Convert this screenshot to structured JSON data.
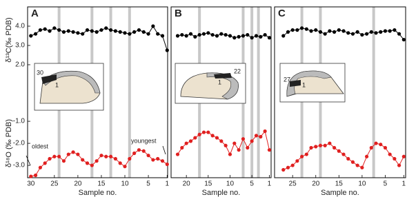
{
  "chart_data": [
    {
      "type": "line",
      "label": "A",
      "x_label": "Sample no.",
      "y_label": "δ¹³C(‰ PDB)",
      "y2_label": "δ¹⁸O (‰ PDB)",
      "ylim": [
        -3.86,
        5.0
      ],
      "y2lim": [
        -3.56,
        4.19
      ],
      "yticks": [
        {
          "value": 2,
          "label": "2.0"
        },
        {
          "value": 3,
          "label": "3.0"
        },
        {
          "value": 4,
          "label": "4.0"
        }
      ],
      "y2ticks": [
        {
          "value": -1,
          "label": "-1.0"
        },
        {
          "value": -2,
          "label": "-2.0"
        },
        {
          "value": -3,
          "label": "-3.0"
        }
      ],
      "xlim": [
        30.7,
        0.9
      ],
      "xticks": [
        30,
        25,
        20,
        15,
        10,
        5,
        1
      ],
      "bands": [
        24,
        17,
        13,
        9
      ],
      "annotations": [
        "oldest",
        "youngest"
      ],
      "inset_labels": [
        "30",
        "1"
      ],
      "x": [
        30,
        29,
        28,
        27,
        26,
        25,
        24,
        23,
        22,
        21,
        20,
        19,
        18,
        17,
        16,
        15,
        14,
        13,
        12,
        11,
        10,
        9,
        8,
        7,
        6,
        5,
        4,
        3,
        2,
        1
      ],
      "series": [
        {
          "color": "#000000",
          "values": [
            3.5,
            3.6,
            3.8,
            3.85,
            3.75,
            3.9,
            3.8,
            3.7,
            3.75,
            3.7,
            3.65,
            3.6,
            3.8,
            3.75,
            3.7,
            3.8,
            3.9,
            3.8,
            3.75,
            3.7,
            3.65,
            3.6,
            3.7,
            3.8,
            3.7,
            3.6,
            4.0,
            3.6,
            3.5,
            2.75
          ]
        },
        {
          "color": "#e02020",
          "axis": "y2",
          "values": [
            -3.5,
            -3.45,
            -3.1,
            -2.9,
            -2.7,
            -2.6,
            -2.6,
            -2.8,
            -2.5,
            -2.4,
            -2.5,
            -2.75,
            -2.9,
            -3.0,
            -2.8,
            -2.55,
            -2.6,
            -2.6,
            -2.7,
            -2.9,
            -3.05,
            -2.7,
            -2.45,
            -2.3,
            -2.35,
            -2.55,
            -2.75,
            -2.7,
            -2.8,
            -2.95
          ]
        }
      ]
    },
    {
      "type": "line",
      "label": "B",
      "x_label": "Sample no.",
      "xlim": [
        23.5,
        0.6
      ],
      "xticks": [
        20,
        15,
        10,
        5,
        1
      ],
      "bands": [
        17,
        7,
        5,
        3.5
      ],
      "inset_labels": [
        "22",
        "1"
      ],
      "x": [
        22,
        21,
        20,
        19,
        18,
        17,
        16,
        15,
        14,
        13,
        12,
        11,
        10,
        9,
        8,
        7,
        6,
        5,
        4,
        3,
        2,
        1
      ],
      "series": [
        {
          "color": "#000000",
          "values": [
            3.5,
            3.55,
            3.5,
            3.6,
            3.45,
            3.55,
            3.6,
            3.65,
            3.55,
            3.5,
            3.6,
            3.55,
            3.5,
            3.4,
            3.45,
            3.5,
            3.55,
            3.4,
            3.5,
            3.45,
            3.55,
            3.4
          ]
        },
        {
          "color": "#e02020",
          "axis": "y2",
          "values": [
            -2.5,
            -2.2,
            -2.0,
            -1.9,
            -1.75,
            -1.6,
            -1.5,
            -1.5,
            -1.65,
            -1.75,
            -1.9,
            -2.1,
            -2.5,
            -2.0,
            -2.3,
            -1.8,
            -2.2,
            -1.9,
            -1.65,
            -1.7,
            -1.45,
            -2.3
          ]
        }
      ]
    },
    {
      "type": "line",
      "label": "C",
      "x_label": "Sample no.",
      "xlim": [
        28.9,
        0.6
      ],
      "xticks": [
        25,
        20,
        15,
        10,
        5,
        1
      ],
      "bands": [
        23,
        19,
        7.5
      ],
      "inset_labels": [
        "27",
        "1"
      ],
      "x": [
        27,
        26,
        25,
        24,
        23,
        22,
        21,
        20,
        19,
        18,
        17,
        16,
        15,
        14,
        13,
        12,
        11,
        10,
        9,
        8,
        7,
        6,
        5,
        4,
        3,
        2,
        1
      ],
      "series": [
        {
          "color": "#000000",
          "values": [
            3.5,
            3.7,
            3.8,
            3.8,
            3.9,
            3.85,
            3.75,
            3.8,
            3.7,
            3.6,
            3.75,
            3.7,
            3.8,
            3.75,
            3.65,
            3.6,
            3.7,
            3.55,
            3.6,
            3.7,
            3.65,
            3.7,
            3.75,
            3.75,
            3.8,
            3.6,
            3.3
          ]
        },
        {
          "color": "#e02020",
          "axis": "y2",
          "values": [
            -3.2,
            -3.1,
            -3.0,
            -2.8,
            -2.6,
            -2.5,
            -2.2,
            -2.15,
            -2.1,
            -2.1,
            -2.0,
            -2.2,
            -2.35,
            -2.5,
            -2.7,
            -2.85,
            -3.0,
            -3.1,
            -2.6,
            -2.2,
            -2.0,
            -2.05,
            -2.2,
            -2.5,
            -2.7,
            -3.0,
            -2.6
          ]
        }
      ]
    }
  ]
}
